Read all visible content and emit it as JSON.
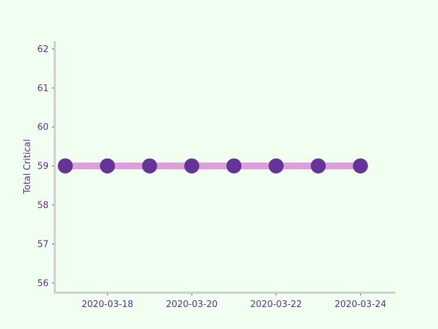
{
  "colors": {
    "background": "#f0fff0",
    "line": "#dda0dd",
    "marker": "#663399",
    "text": "#5b2d8e",
    "spine": "#cccccc"
  },
  "chart_data": {
    "type": "line",
    "title": "",
    "xlabel": "",
    "ylabel": "Total Critical",
    "x": [
      "2020-03-17",
      "2020-03-18",
      "2020-03-19",
      "2020-03-20",
      "2020-03-21",
      "2020-03-22",
      "2020-03-23",
      "2020-03-24"
    ],
    "series": [
      {
        "values": [
          59,
          59,
          59,
          59,
          59,
          59,
          59,
          59
        ]
      }
    ],
    "xticks": [
      "2020-03-18",
      "2020-03-20",
      "2020-03-22",
      "2020-03-24"
    ],
    "yticks": [
      56,
      57,
      58,
      59,
      60,
      61,
      62
    ],
    "xlim": [
      "2020-03-16T18:00",
      "2020-03-24T20:00"
    ],
    "ylim": [
      55.75,
      62.2
    ],
    "grid": false,
    "legend": "none"
  }
}
